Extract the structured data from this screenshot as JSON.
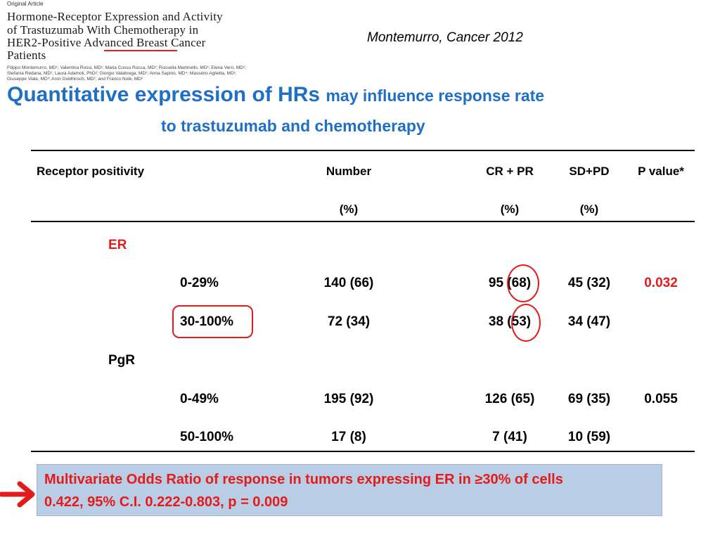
{
  "article": {
    "label": "Original Article",
    "title_lines": [
      "Hormone-Receptor Expression and Activity",
      "of Trastuzumab With Chemotherapy in",
      "HER2-Positive Advanced Breast Cancer",
      "Patients"
    ],
    "author_lines": [
      "Filippo Montemurro, MD¹; Valentina Rossi, MD¹; Maria Cossu Rocca, MD²; Rossella Martinello, MD¹; Elena Verri, MD²;",
      "Stefania Redana, MD¹; Laura Adamoli, PhD²; Giorgio Valabrega, MD¹; Anna Sapino, MD⁴; Massimo Aglietta, MD¹;",
      "Giuseppe Viale, MD³; Aron Goldhirsch, MD²; and Franco Nolè, MD²"
    ]
  },
  "citation": "Montemurro, Cancer 2012",
  "heading": {
    "part_large": "Quantitative expression of HRs",
    "part_small": "may influence response rate",
    "line_2": "to trastuzumab and chemotherapy"
  },
  "table": {
    "headers": {
      "receptor": "Receptor positivity",
      "number": "Number",
      "crpr": "CR + PR",
      "sdpd": "SD+PD",
      "pvalue": "P value*"
    },
    "units": {
      "number": "(%)",
      "crpr": "(%)",
      "sdpd": "(%)"
    },
    "groups": [
      {
        "name": "ER",
        "rows": [
          {
            "range": "0-29%",
            "number": "140 (66)",
            "crpr": "95 (68)",
            "sdpd": "45 (32)",
            "pvalue": "0.032"
          },
          {
            "range": "30-100%",
            "number": "72 (34)",
            "crpr": "38 (53)",
            "sdpd": "34 (47)",
            "pvalue": ""
          }
        ]
      },
      {
        "name": "PgR",
        "rows": [
          {
            "range": "0-49%",
            "number": "195 (92)",
            "crpr": "126 (65)",
            "sdpd": "69 (35)",
            "pvalue": "0.055"
          },
          {
            "range": "50-100%",
            "number": "17 (8)",
            "crpr": "7 (41)",
            "sdpd": "10 (59)",
            "pvalue": ""
          }
        ]
      }
    ]
  },
  "note": {
    "line_1": "Multivariate Odds Ratio of response in tumors expressing ER in ≥30% of cells",
    "line_2": "0.422, 95% C.I. 0.222-0.803, p = 0.009"
  },
  "colors": {
    "heading": "#1f6fc4",
    "highlight_red": "#e41b1b",
    "note_background": "#b9cde5"
  }
}
